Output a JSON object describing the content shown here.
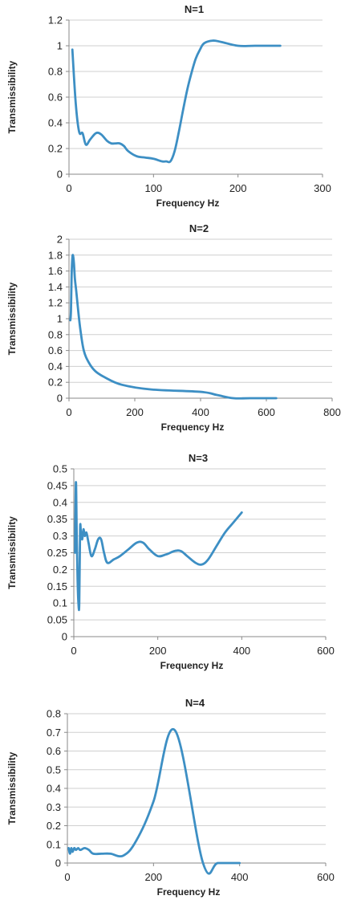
{
  "chart_data": [
    {
      "type": "line",
      "title": "N=1",
      "xlabel": "Frequency Hz",
      "ylabel": "Transmissibility",
      "xlim": [
        0,
        300
      ],
      "ylim": [
        0,
        1.2
      ],
      "xticks": [
        0,
        100,
        200,
        300
      ],
      "yticks": [
        0,
        0.2,
        0.4,
        0.6,
        0.8,
        1,
        1.2
      ],
      "xtick_labels": [
        "0",
        "100",
        "200",
        "300"
      ],
      "ytick_labels": [
        "0",
        "0.2",
        "0.4",
        "0.6",
        "0.8",
        "1",
        "1.2"
      ],
      "grid": "horizontal",
      "line_color": "#3d8fc4",
      "series": [
        {
          "x": [
            4,
            8,
            12,
            16,
            20,
            25,
            32,
            38,
            45,
            50,
            55,
            60,
            65,
            70,
            80,
            90,
            100,
            110,
            115,
            120,
            125,
            130,
            135,
            140,
            145,
            150,
            155,
            160,
            170,
            180,
            200,
            220,
            250
          ],
          "y": [
            0.97,
            0.55,
            0.33,
            0.32,
            0.23,
            0.27,
            0.32,
            0.31,
            0.26,
            0.24,
            0.24,
            0.24,
            0.22,
            0.18,
            0.14,
            0.13,
            0.12,
            0.1,
            0.1,
            0.1,
            0.18,
            0.33,
            0.5,
            0.66,
            0.79,
            0.9,
            0.97,
            1.02,
            1.04,
            1.03,
            1.0,
            1.0,
            1.0
          ]
        }
      ]
    },
    {
      "type": "line",
      "title": "N=2",
      "xlabel": "Frequency Hz",
      "ylabel": "Transmissibility",
      "xlim": [
        0,
        800
      ],
      "ylim": [
        0,
        2
      ],
      "xticks": [
        0,
        200,
        400,
        600,
        800
      ],
      "yticks": [
        0,
        0.2,
        0.4,
        0.6,
        0.8,
        1,
        1.2,
        1.4,
        1.6,
        1.8,
        2
      ],
      "xtick_labels": [
        "0",
        "200",
        "400",
        "600",
        "800"
      ],
      "ytick_labels": [
        "0",
        "0.2",
        "0.4",
        "0.6",
        "0.8",
        "1",
        "1.2",
        "1.4",
        "1.6",
        "1.8",
        "2"
      ],
      "grid": "horizontal",
      "line_color": "#3d8fc4",
      "series": [
        {
          "x": [
            4,
            6,
            8,
            10,
            12,
            15,
            18,
            22,
            28,
            35,
            45,
            60,
            80,
            110,
            160,
            250,
            400,
            450,
            500,
            550,
            630
          ],
          "y": [
            0.98,
            1.1,
            1.55,
            1.75,
            1.8,
            1.7,
            1.5,
            1.35,
            1.1,
            0.85,
            0.6,
            0.45,
            0.34,
            0.26,
            0.17,
            0.11,
            0.08,
            0.04,
            0.0,
            0.0,
            0.0
          ]
        }
      ]
    },
    {
      "type": "line",
      "title": "N=3",
      "xlabel": "Frequency Hz",
      "ylabel": "Transmissibility",
      "xlim": [
        0,
        600
      ],
      "ylim": [
        0,
        0.5
      ],
      "xticks": [
        0,
        200,
        400,
        600
      ],
      "yticks": [
        0,
        0.05,
        0.1,
        0.15,
        0.2,
        0.25,
        0.3,
        0.35,
        0.4,
        0.45,
        0.5
      ],
      "xtick_labels": [
        "0",
        "200",
        "400",
        "600"
      ],
      "ytick_labels": [
        "0",
        "0.05",
        "0.1",
        "0.15",
        "0.2",
        "0.25",
        "0.3",
        "0.35",
        "0.4",
        "0.45",
        "0.5"
      ],
      "grid": "horizontal",
      "line_color": "#3d8fc4",
      "series": [
        {
          "x": [
            3,
            5,
            7,
            9,
            11,
            13,
            15,
            17,
            20,
            23,
            26,
            30,
            35,
            42,
            50,
            58,
            65,
            72,
            80,
            95,
            110,
            130,
            150,
            165,
            180,
            200,
            220,
            240,
            255,
            270,
            290,
            305,
            320,
            340,
            360,
            380,
            400
          ],
          "y": [
            0.25,
            0.46,
            0.3,
            0.17,
            0.1,
            0.1,
            0.32,
            0.31,
            0.29,
            0.32,
            0.3,
            0.31,
            0.28,
            0.24,
            0.26,
            0.29,
            0.29,
            0.25,
            0.22,
            0.23,
            0.24,
            0.26,
            0.28,
            0.28,
            0.26,
            0.24,
            0.245,
            0.255,
            0.255,
            0.24,
            0.22,
            0.215,
            0.23,
            0.27,
            0.31,
            0.34,
            0.37
          ]
        }
      ]
    },
    {
      "type": "line",
      "title": "N=4",
      "xlabel": "Frequency Hz",
      "ylabel": "Transmissibility",
      "xlim": [
        0,
        600
      ],
      "ylim": [
        0,
        0.8
      ],
      "xticks": [
        0,
        200,
        400,
        600
      ],
      "yticks": [
        0,
        0.1,
        0.2,
        0.3,
        0.4,
        0.5,
        0.6,
        0.7,
        0.8
      ],
      "xtick_labels": [
        "0",
        "200",
        "400",
        "600"
      ],
      "ytick_labels": [
        "0",
        "0.1",
        "0.2",
        "0.3",
        "0.4",
        "0.5",
        "0.6",
        "0.7",
        "0.8"
      ],
      "grid": "horizontal",
      "line_color": "#3d8fc4",
      "series": [
        {
          "x": [
            3,
            6,
            9,
            12,
            16,
            20,
            25,
            30,
            40,
            50,
            60,
            80,
            100,
            130,
            160,
            200,
            250,
            315,
            350,
            400
          ],
          "y": [
            0.08,
            0.05,
            0.08,
            0.06,
            0.08,
            0.07,
            0.08,
            0.07,
            0.08,
            0.07,
            0.05,
            0.05,
            0.05,
            0.04,
            0.12,
            0.33,
            0.71,
            0.0,
            0.0,
            0.0
          ]
        }
      ]
    }
  ]
}
